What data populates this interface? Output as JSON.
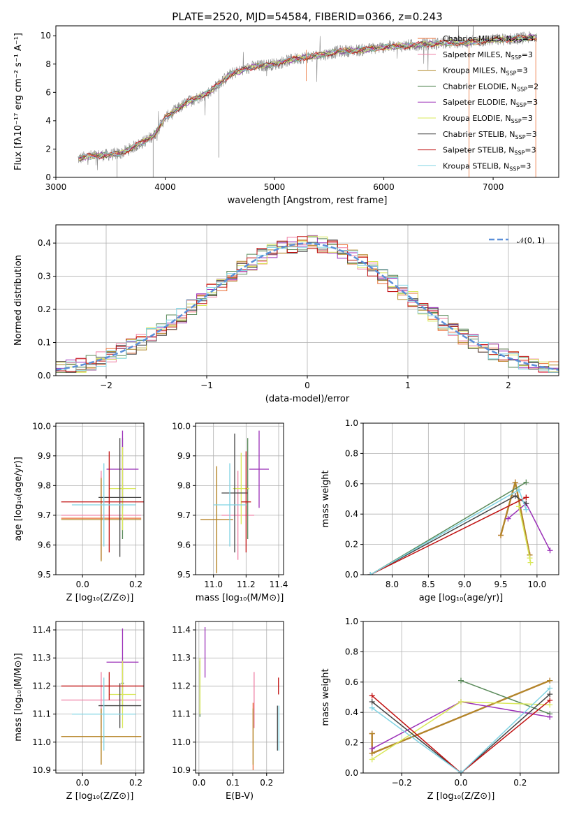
{
  "figure_title": "PLATE=2520, MJD=54584, FIBERID=0366, z=0.243",
  "colors": {
    "Chabrier MILES": "#ea6f35",
    "Salpeter MILES": "#ef7fa4",
    "Kroupa MILES": "#b08828",
    "Chabrier ELODIE": "#5a8a5a",
    "Salpeter ELODIE": "#9b30b8",
    "Kroupa ELODIE": "#d9e85a",
    "Chabrier STELIB": "#444444",
    "Salpeter STELIB": "#c01010",
    "Kroupa STELIB": "#7fd3e3",
    "data": "#888888",
    "normal": "#5b8fd8"
  },
  "chart_data": [
    {
      "id": "spectrum",
      "type": "line",
      "xlabel": "wavelength [Angstrom, rest frame]",
      "ylabel": "Flux [fλ10⁻¹⁷ erg cm⁻² s⁻¹ A⁻¹]",
      "xlim": [
        3000,
        7600
      ],
      "ylim": [
        0,
        10.7
      ],
      "xticks": [
        3000,
        4000,
        5000,
        6000,
        7000
      ],
      "yticks": [
        0,
        2,
        4,
        6,
        8,
        10
      ],
      "grid": false,
      "legend_position": "right",
      "legend": [
        {
          "name": "Chabrier MILES",
          "text": "Chabrier MILES, N",
          "sub": "SSP",
          "tail": "=3"
        },
        {
          "name": "Salpeter MILES",
          "text": "Salpeter MILES, N",
          "sub": "SSP",
          "tail": "=3"
        },
        {
          "name": "Kroupa MILES",
          "text": "Kroupa MILES, N",
          "sub": "SSP",
          "tail": "=3"
        },
        {
          "name": "Chabrier ELODIE",
          "text": "Chabrier ELODIE, N",
          "sub": "SSP",
          "tail": "=2"
        },
        {
          "name": "Salpeter ELODIE",
          "text": "Salpeter ELODIE, N",
          "sub": "SSP",
          "tail": "=3"
        },
        {
          "name": "Kroupa ELODIE",
          "text": "Kroupa ELODIE, N",
          "sub": "SSP",
          "tail": "=3"
        },
        {
          "name": "Chabrier STELIB",
          "text": "Chabrier STELIB, N",
          "sub": "SSP",
          "tail": "=3"
        },
        {
          "name": "Salpeter STELIB",
          "text": "Salpeter STELIB, N",
          "sub": "SSP",
          "tail": "=3"
        },
        {
          "name": "Kroupa STELIB",
          "text": "Kroupa STELIB, N",
          "sub": "SSP",
          "tail": "=3"
        }
      ],
      "continuum_x": [
        3200,
        3300,
        3500,
        3600,
        3800,
        3900,
        4000,
        4200,
        4400,
        4600,
        4800,
        5000,
        5200,
        5400,
        5600,
        5800,
        6000,
        6200,
        6400,
        6600,
        6800,
        7000,
        7200,
        7400
      ],
      "continuum_y": [
        1.3,
        1.5,
        1.6,
        1.7,
        2.5,
        3.0,
        4.2,
        5.3,
        6.0,
        7.3,
        7.8,
        8.0,
        8.4,
        8.6,
        8.9,
        9.0,
        9.2,
        9.3,
        9.4,
        9.5,
        9.55,
        9.7,
        9.8,
        9.9
      ]
    },
    {
      "id": "residuals",
      "type": "histogram",
      "xlabel": "(data-model)/error",
      "ylabel": "Normed distribution",
      "xlim": [
        -2.5,
        2.5
      ],
      "ylim": [
        0,
        0.455
      ],
      "xticks": [
        -2,
        -1,
        0,
        1,
        2
      ],
      "yticks": [
        0.0,
        0.1,
        0.2,
        0.3,
        0.4
      ],
      "grid": true,
      "legend_position": "top-right",
      "legend": [
        {
          "name": "normal",
          "label": "𝒩(0, 1)"
        }
      ],
      "bin_width": 0.1
    },
    {
      "id": "age-vs-Z",
      "type": "errorbar",
      "xlabel": "Z [log₁₀(Z/Z⊙)]",
      "ylabel": "age  [log₁₀(age/yr)]",
      "xlim": [
        -0.1,
        0.23
      ],
      "ylim": [
        9.5,
        10.01
      ],
      "xticks": [
        0.0,
        0.2
      ],
      "yticks": [
        9.5,
        9.6,
        9.7,
        9.8,
        9.9,
        10.0
      ],
      "grid": true,
      "points": [
        {
          "series": "Chabrier MILES",
          "x": 0.07,
          "xerr": 0.15,
          "y": 9.69,
          "yerr": 0.14
        },
        {
          "series": "Salpeter MILES",
          "x": 0.07,
          "xerr": 0.15,
          "y": 9.7,
          "yerr": 0.15
        },
        {
          "series": "Kroupa MILES",
          "x": 0.07,
          "xerr": 0.15,
          "y": 9.685,
          "yerr": 0.14
        },
        {
          "series": "Chabrier ELODIE",
          "x": 0.15,
          "xerr": 0.005,
          "y": 9.79,
          "yerr": 0.17
        },
        {
          "series": "Salpeter ELODIE",
          "x": 0.15,
          "xerr": 0.06,
          "y": 9.855,
          "yerr": 0.13
        },
        {
          "series": "Kroupa ELODIE",
          "x": 0.15,
          "xerr": 0.05,
          "y": 9.79,
          "yerr": 0.14
        },
        {
          "series": "Chabrier STELIB",
          "x": 0.14,
          "xerr": 0.08,
          "y": 9.76,
          "yerr": 0.2
        },
        {
          "series": "Salpeter STELIB",
          "x": 0.1,
          "xerr": 0.18,
          "y": 9.745,
          "yerr": 0.17
        },
        {
          "series": "Kroupa STELIB",
          "x": 0.08,
          "xerr": 0.12,
          "y": 9.735,
          "yerr": 0.14
        }
      ]
    },
    {
      "id": "age-vs-mass",
      "type": "errorbar",
      "xlabel": "mass [log₁₀(M/M⊙)]",
      "ylabel": "",
      "xlim": [
        10.89,
        11.43
      ],
      "ylim": [
        9.5,
        10.01
      ],
      "xticks": [
        11.0,
        11.2,
        11.4
      ],
      "yticks": [
        9.5,
        9.6,
        9.7,
        9.8,
        9.9,
        10.0
      ],
      "grid": true,
      "points": [
        {
          "series": "Chabrier MILES",
          "x": 11.02,
          "xerr": 0.1,
          "y": 9.685,
          "yerr": 0.18
        },
        {
          "series": "Salpeter MILES",
          "x": 11.15,
          "xerr": 0.1,
          "y": 9.7,
          "yerr": 0.15
        },
        {
          "series": "Kroupa MILES",
          "x": 11.02,
          "xerr": 0.1,
          "y": 9.685,
          "yerr": 0.18
        },
        {
          "series": "Chabrier ELODIE",
          "x": 11.21,
          "xerr": 0.005,
          "y": 9.79,
          "yerr": 0.17
        },
        {
          "series": "Salpeter ELODIE",
          "x": 11.28,
          "xerr": 0.06,
          "y": 9.855,
          "yerr": 0.13
        },
        {
          "series": "Kroupa ELODIE",
          "x": 11.17,
          "xerr": 0.05,
          "y": 9.79,
          "yerr": 0.12
        },
        {
          "series": "Chabrier STELIB",
          "x": 11.13,
          "xerr": 0.08,
          "y": 9.775,
          "yerr": 0.2
        },
        {
          "series": "Salpeter STELIB",
          "x": 11.2,
          "xerr": 0.03,
          "y": 9.745,
          "yerr": 0.17
        },
        {
          "series": "Kroupa STELIB",
          "x": 11.1,
          "xerr": 0.1,
          "y": 9.735,
          "yerr": 0.14
        }
      ]
    },
    {
      "id": "weight-vs-age",
      "type": "line",
      "xlabel": "age  [log₁₀(age/yr)]",
      "ylabel": "mass weight",
      "xlim": [
        7.6,
        10.3
      ],
      "ylim": [
        0,
        1.0
      ],
      "xticks": [
        8.0,
        8.5,
        9.0,
        9.5,
        10.0
      ],
      "yticks": [
        0.0,
        0.2,
        0.4,
        0.6,
        0.8,
        1.0
      ],
      "grid": true,
      "series": [
        {
          "name": "Chabrier MILES",
          "x": [
            9.5,
            9.7,
            9.9
          ],
          "y": [
            0.26,
            0.61,
            0.13
          ]
        },
        {
          "name": "Salpeter MILES",
          "x": [
            9.5,
            9.7,
            9.9
          ],
          "y": [
            0.26,
            0.61,
            0.13
          ]
        },
        {
          "name": "Kroupa MILES",
          "x": [
            9.5,
            9.7,
            9.9
          ],
          "y": [
            0.26,
            0.61,
            0.13
          ]
        },
        {
          "name": "Chabrier ELODIE",
          "x": [
            7.7,
            9.85
          ],
          "y": [
            0.0,
            0.61
          ]
        },
        {
          "name": "Salpeter ELODIE",
          "x": [
            9.6,
            9.85,
            10.18
          ],
          "y": [
            0.37,
            0.47,
            0.16
          ]
        },
        {
          "name": "Kroupa ELODIE",
          "x": [
            9.75,
            9.9,
            9.91
          ],
          "y": [
            0.45,
            0.11,
            0.08
          ]
        },
        {
          "name": "Chabrier STELIB",
          "x": [
            7.7,
            9.7,
            9.85
          ],
          "y": [
            0.0,
            0.52,
            0.47
          ]
        },
        {
          "name": "Salpeter STELIB",
          "x": [
            7.7,
            9.85
          ],
          "y": [
            0.0,
            0.51
          ]
        },
        {
          "name": "Kroupa STELIB",
          "x": [
            7.7,
            9.75,
            9.85
          ],
          "y": [
            0.0,
            0.56,
            0.43
          ]
        }
      ]
    },
    {
      "id": "mass-vs-Z",
      "type": "errorbar",
      "xlabel": "Z [log₁₀(Z/Z⊙)]",
      "ylabel": "mass [log₁₀(M/M⊙)]",
      "xlim": [
        -0.1,
        0.23
      ],
      "ylim": [
        10.89,
        11.43
      ],
      "xticks": [
        0.0,
        0.2
      ],
      "yticks": [
        10.9,
        11.0,
        11.1,
        11.2,
        11.3,
        11.4
      ],
      "grid": true,
      "points": [
        {
          "series": "Chabrier MILES",
          "x": 0.07,
          "xerr": 0.15,
          "y": 11.02,
          "yerr": 0.1
        },
        {
          "series": "Salpeter MILES",
          "x": 0.07,
          "xerr": 0.15,
          "y": 11.15,
          "yerr": 0.1
        },
        {
          "series": "Kroupa MILES",
          "x": 0.07,
          "xerr": 0.15,
          "y": 11.02,
          "yerr": 0.1
        },
        {
          "series": "Chabrier ELODIE",
          "x": 0.15,
          "xerr": 0.005,
          "y": 11.21,
          "yerr": 0.08
        },
        {
          "series": "Salpeter ELODIE",
          "x": 0.15,
          "xerr": 0.06,
          "y": 11.285,
          "yerr": 0.12
        },
        {
          "series": "Kroupa ELODIE",
          "x": 0.15,
          "xerr": 0.05,
          "y": 11.17,
          "yerr": 0.12
        },
        {
          "series": "Chabrier STELIB",
          "x": 0.14,
          "xerr": 0.08,
          "y": 11.13,
          "yerr": 0.08
        },
        {
          "series": "Salpeter STELIB",
          "x": 0.1,
          "xerr": 0.18,
          "y": 11.2,
          "yerr": 0.05
        },
        {
          "series": "Kroupa STELIB",
          "x": 0.08,
          "xerr": 0.12,
          "y": 11.1,
          "yerr": 0.13
        }
      ]
    },
    {
      "id": "mass-vs-ebv",
      "type": "errorbar",
      "xlabel": "E(B-V)",
      "ylabel": "",
      "xlim": [
        -0.01,
        0.25
      ],
      "ylim": [
        10.89,
        11.43
      ],
      "xticks": [
        0.0,
        0.1,
        0.2
      ],
      "yticks": [
        10.9,
        11.0,
        11.1,
        11.2,
        11.3,
        11.4
      ],
      "grid": true,
      "points": [
        {
          "series": "Chabrier MILES",
          "x": 0.16,
          "xerr": 0,
          "y": 11.02,
          "yerr": 0.12
        },
        {
          "series": "Salpeter MILES",
          "x": 0.163,
          "xerr": 0,
          "y": 11.15,
          "yerr": 0.1
        },
        {
          "series": "Kroupa MILES",
          "x": 0.16,
          "xerr": 0,
          "y": 11.02,
          "yerr": 0.1
        },
        {
          "series": "Chabrier ELODIE",
          "x": 0.003,
          "xerr": 0,
          "y": 11.19,
          "yerr": 0.1
        },
        {
          "series": "Salpeter ELODIE",
          "x": 0.018,
          "xerr": 0,
          "y": 11.32,
          "yerr": 0.09
        },
        {
          "series": "Kroupa ELODIE",
          "x": 0.003,
          "xerr": 0,
          "y": 11.2,
          "yerr": 0.1
        },
        {
          "series": "Chabrier STELIB",
          "x": 0.232,
          "xerr": 0,
          "y": 11.05,
          "yerr": 0.08
        },
        {
          "series": "Salpeter STELIB",
          "x": 0.235,
          "xerr": 0,
          "y": 11.2,
          "yerr": 0.03
        },
        {
          "series": "Kroupa STELIB",
          "x": 0.236,
          "xerr": 0,
          "y": 11.05,
          "yerr": 0.08
        }
      ]
    },
    {
      "id": "weight-vs-Z",
      "type": "line",
      "xlabel": "Z [log₁₀(Z/Z⊙)]",
      "ylabel": "mass weight",
      "xlim": [
        -0.33,
        0.33
      ],
      "ylim": [
        0,
        1.0
      ],
      "xticks": [
        -0.2,
        0.0,
        0.2
      ],
      "yticks": [
        0.0,
        0.2,
        0.4,
        0.6,
        0.8,
        1.0
      ],
      "grid": true,
      "series": [
        {
          "name": "Chabrier MILES",
          "x": [
            -0.3,
            -0.3,
            0.3
          ],
          "y": [
            0.26,
            0.13,
            0.61
          ]
        },
        {
          "name": "Salpeter MILES",
          "x": [
            -0.3,
            -0.3,
            0.3
          ],
          "y": [
            0.26,
            0.13,
            0.61
          ]
        },
        {
          "name": "Kroupa MILES",
          "x": [
            -0.3,
            -0.3,
            0.3
          ],
          "y": [
            0.26,
            0.13,
            0.61
          ]
        },
        {
          "name": "Chabrier ELODIE",
          "x": [
            0.0,
            0.3
          ],
          "y": [
            0.61,
            0.39
          ]
        },
        {
          "name": "Salpeter ELODIE",
          "x": [
            -0.3,
            0.0,
            0.3
          ],
          "y": [
            0.16,
            0.47,
            0.37
          ]
        },
        {
          "name": "Kroupa ELODIE",
          "x": [
            -0.3,
            0.0,
            0.3
          ],
          "y": [
            0.09,
            0.47,
            0.45
          ]
        },
        {
          "name": "Chabrier STELIB",
          "x": [
            -0.3,
            0.0,
            0.3
          ],
          "y": [
            0.47,
            0.0,
            0.52
          ]
        },
        {
          "name": "Salpeter STELIB",
          "x": [
            -0.3,
            0.0,
            0.3
          ],
          "y": [
            0.51,
            0.0,
            0.48
          ]
        },
        {
          "name": "Kroupa STELIB",
          "x": [
            -0.3,
            0.0,
            0.3
          ],
          "y": [
            0.43,
            0.0,
            0.56
          ]
        }
      ]
    }
  ]
}
